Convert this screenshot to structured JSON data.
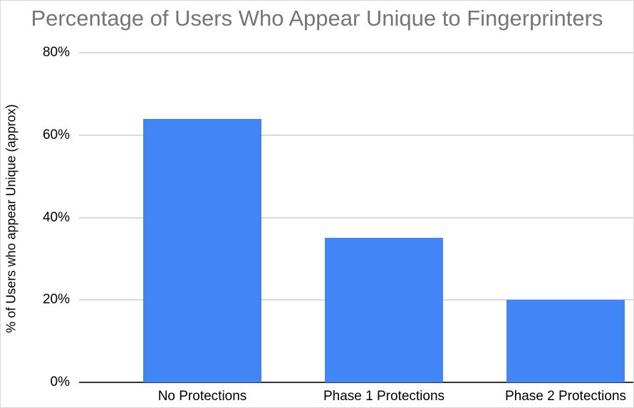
{
  "window": {
    "background": "#ffffff",
    "border_color": "#d7d7d7"
  },
  "chart_data": {
    "type": "bar",
    "title": "Percentage of Users Who Appear Unique to Fingerprinters",
    "categories": [
      "No Protections",
      "Phase 1 Protections",
      "Phase 2 Protections"
    ],
    "values": [
      64,
      35,
      20
    ],
    "xlabel": "",
    "ylabel": "% of Users who appear Unique (approx)",
    "ylim": [
      0,
      80
    ],
    "yticks": [
      0,
      20,
      40,
      60,
      80
    ],
    "ytick_labels": [
      "0%",
      "20%",
      "40%",
      "60%",
      "80%"
    ],
    "grid": true,
    "legend": "none",
    "colors": {
      "bar": "#4285f4",
      "title": "#757575",
      "gridline": "#d9d9d9",
      "zero_axis": "#333333",
      "labels": "#000000"
    }
  }
}
